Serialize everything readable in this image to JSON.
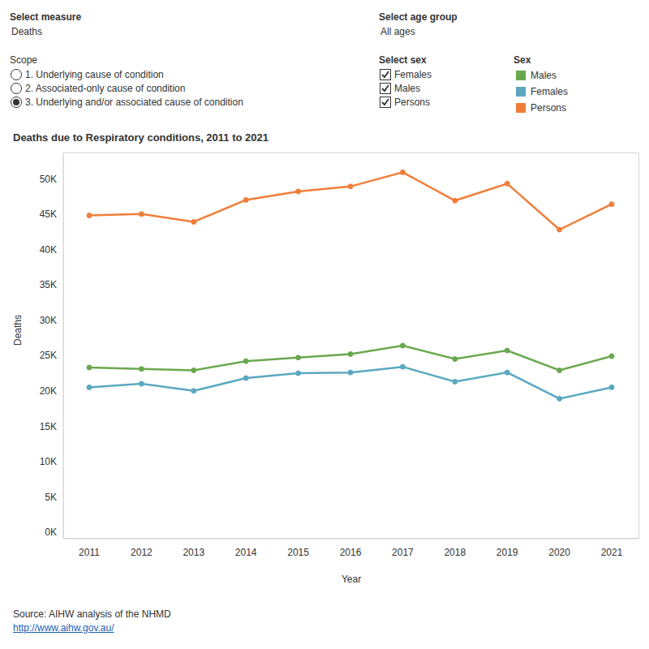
{
  "chart_data": {
    "type": "line",
    "title": "Deaths due to Respiratory conditions, 2011 to 2021",
    "x_label": "Year",
    "y_label": "Deaths",
    "categories": [
      "2011",
      "2012",
      "2013",
      "2014",
      "2015",
      "2016",
      "2017",
      "2018",
      "2019",
      "2020",
      "2021"
    ],
    "series": [
      {
        "name": "Males",
        "color": "#6aa84f",
        "values": [
          23300,
          23100,
          22900,
          24200,
          24700,
          25200,
          26400,
          24500,
          25700,
          22900,
          24900
        ]
      },
      {
        "name": "Females",
        "color": "#5ba8c0",
        "values": [
          20500,
          21000,
          20000,
          21800,
          22500,
          22600,
          23400,
          21300,
          22600,
          18900,
          20500
        ]
      },
      {
        "name": "Persons",
        "color": "#f07e3a",
        "values": [
          44800,
          45000,
          43900,
          47000,
          48200,
          48900,
          50900,
          46900,
          49300,
          42800,
          46400
        ]
      }
    ],
    "ylim": [
      -900,
      53700
    ],
    "yticks": [
      {
        "value": 0,
        "label": "0K"
      },
      {
        "value": 5000,
        "label": "5K"
      },
      {
        "value": 10000,
        "label": "10K"
      },
      {
        "value": 15000,
        "label": "15K"
      },
      {
        "value": 20000,
        "label": "20K"
      },
      {
        "value": 25000,
        "label": "25K"
      },
      {
        "value": 30000,
        "label": "30K"
      },
      {
        "value": 35000,
        "label": "35K"
      },
      {
        "value": 40000,
        "label": "40K"
      },
      {
        "value": 45000,
        "label": "45K"
      },
      {
        "value": 50000,
        "label": "50K"
      }
    ],
    "grid": false,
    "legend": "top right",
    "legend_title": "Sex",
    "marker": "circle"
  },
  "controls": {
    "measure": {
      "label": "Select measure",
      "value": "Deaths"
    },
    "age_group": {
      "label": "Select age group",
      "value": "All ages"
    },
    "scope": {
      "label": "Scope",
      "options": [
        {
          "label": "1. Underlying cause of condition",
          "selected": false
        },
        {
          "label": "2. Associated-only cause of condition",
          "selected": false
        },
        {
          "label": "3. Underlying and/or associated cause of condition",
          "selected": true
        }
      ]
    },
    "sex": {
      "label": "Select sex",
      "options": [
        {
          "label": "Females",
          "checked": true
        },
        {
          "label": "Males",
          "checked": true
        },
        {
          "label": "Persons",
          "checked": true
        }
      ]
    }
  },
  "source": {
    "text": "Source: AIHW analysis of the NHMD",
    "link": "http://www.aihw.gov.au/"
  }
}
